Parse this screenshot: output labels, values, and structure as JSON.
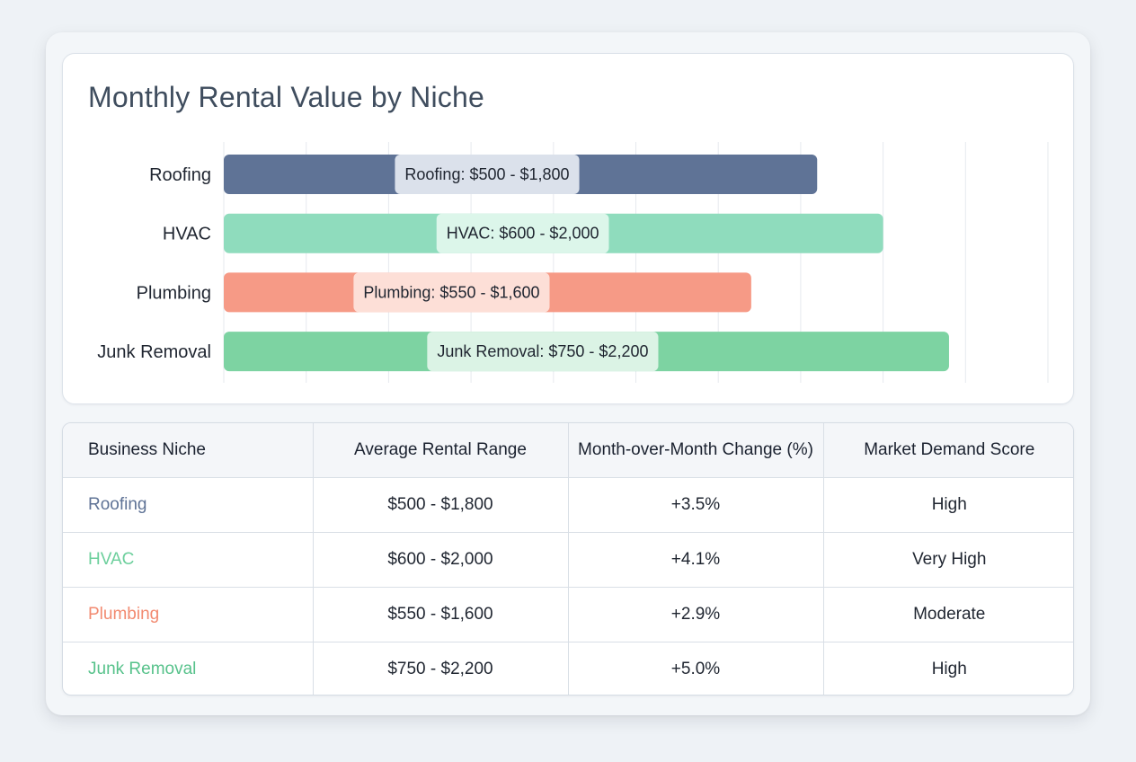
{
  "colors": {
    "roofing": "#5f7396",
    "hvac": "#8fdcbd",
    "plumbing": "#f69a86",
    "junk_removal": "#7dd3a2",
    "roofing_text": "#5f7396",
    "hvac_text": "#6ccf9c",
    "plumbing_text": "#f28a70",
    "junk_removal_text": "#57c28b"
  },
  "chart_data": {
    "type": "bar",
    "title": "Monthly Rental Value by Niche",
    "categories": [
      "Roofing",
      "HVAC",
      "Plumbing",
      "Junk Removal"
    ],
    "bar_labels": [
      "Roofing: $500 - $1,800",
      "HVAC: $600 - $2,000",
      "Plumbing: $550 - $1,600",
      "Junk Removal: $750 - $2,200"
    ],
    "values": [
      1800,
      2000,
      1600,
      2200
    ],
    "xlim": [
      0,
      2500
    ],
    "grid": true,
    "orientation": "horizontal",
    "bar_colors": [
      "#5f7396",
      "#8fdcbd",
      "#f69a86",
      "#7dd3a2"
    ],
    "label_bg_colors": [
      "#e4e9f1",
      "#e2f7ed",
      "#fde4de",
      "#e2f5ea"
    ]
  },
  "table": {
    "headers": [
      "Business Niche",
      "Average Rental Range",
      "Month-over-Month Change (%)",
      "Market Demand Score"
    ],
    "rows": [
      {
        "niche": "Roofing",
        "range": "$500 - $1,800",
        "change": "+3.5%",
        "demand": "High"
      },
      {
        "niche": "HVAC",
        "range": "$600 - $2,000",
        "change": "+4.1%",
        "demand": "Very High"
      },
      {
        "niche": "Plumbing",
        "range": "$550 - $1,600",
        "change": "+2.9%",
        "demand": "Moderate"
      },
      {
        "niche": "Junk Removal",
        "range": "$750 - $2,200",
        "change": "+5.0%",
        "demand": "High"
      }
    ]
  }
}
